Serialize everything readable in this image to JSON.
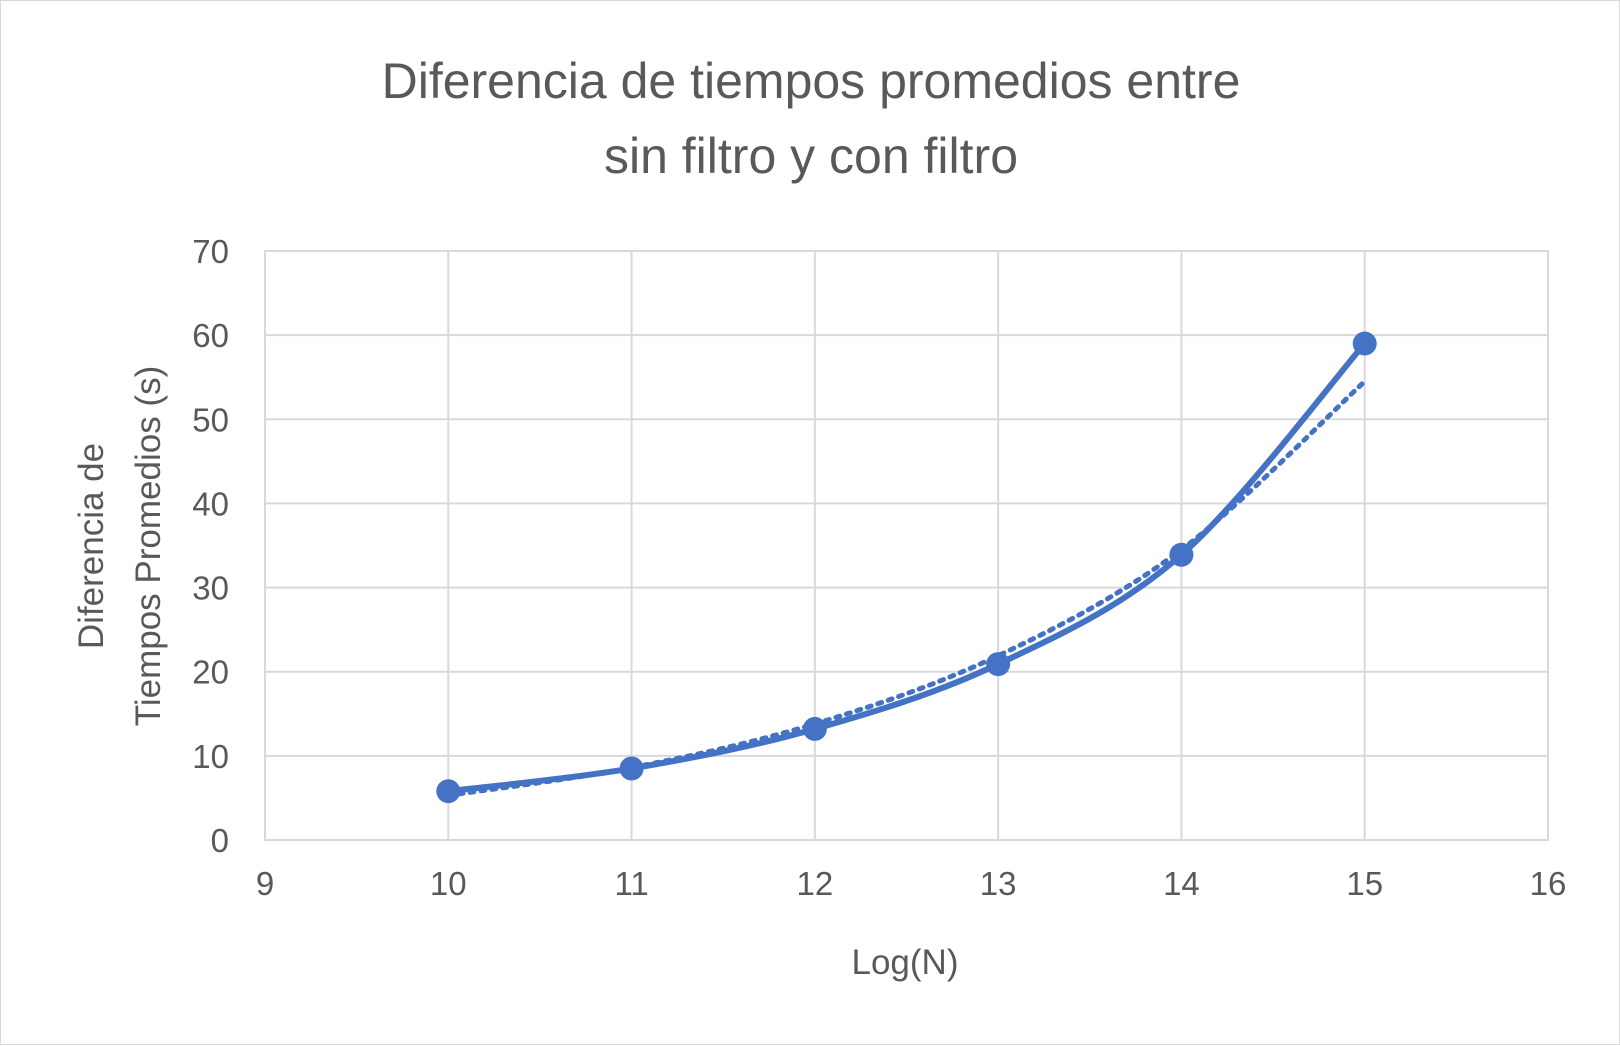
{
  "chart_data": {
    "type": "scatter",
    "title_lines": [
      "Diferencia de tiempos promedios entre",
      "sin filtro y con filtro"
    ],
    "xlabel": "Log(N)",
    "ylabel_lines": [
      "Diferencia de",
      "Tiempos Promedios (s)"
    ],
    "xlim": [
      9,
      16
    ],
    "ylim": [
      0,
      70
    ],
    "x_ticks": [
      9,
      10,
      11,
      12,
      13,
      14,
      15,
      16
    ],
    "y_ticks": [
      0,
      10,
      20,
      30,
      40,
      50,
      60,
      70
    ],
    "grid": true,
    "legend": "none",
    "series": [
      {
        "x": [
          10,
          11,
          12,
          13,
          14,
          15
        ],
        "y": [
          5.8,
          8.5,
          13.2,
          20.9,
          33.9,
          59.0
        ],
        "line": "smooth",
        "markers": true,
        "color": "#4472c4"
      }
    ],
    "trendline": {
      "kind": "exponential",
      "style": "dotted",
      "color": "#4472c4",
      "x": [
        10,
        11,
        12,
        13,
        14,
        15
      ],
      "y": [
        5.3,
        8.6,
        13.8,
        21.9,
        34.5,
        54.5
      ]
    }
  }
}
